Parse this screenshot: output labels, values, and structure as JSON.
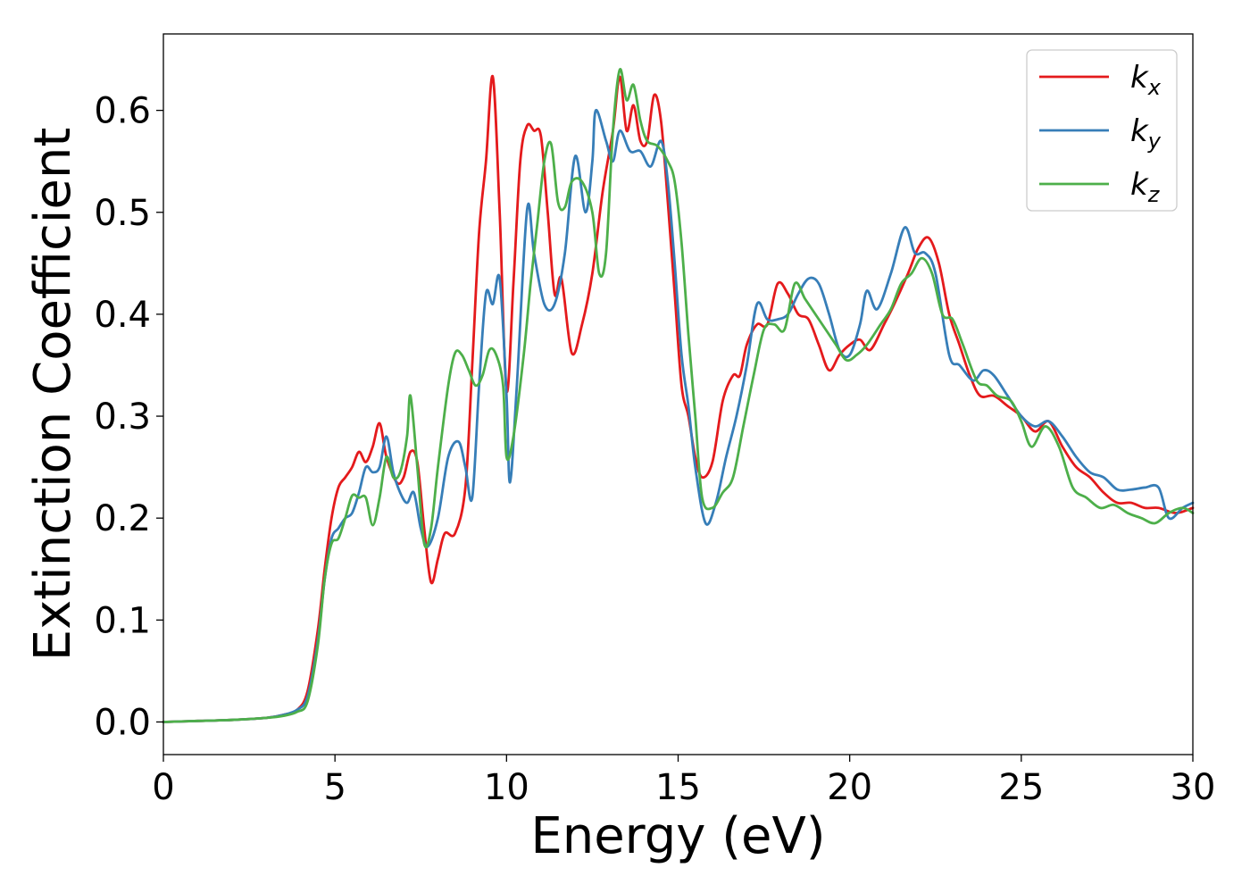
{
  "chart_data": {
    "type": "line",
    "title": "",
    "xlabel": "Energy (eV)",
    "ylabel": "Extinction Coefficient",
    "xlim": [
      0,
      30
    ],
    "ylim": [
      -0.032,
      0.675
    ],
    "xticks": [
      0,
      5,
      10,
      15,
      20,
      25,
      30
    ],
    "yticks": [
      0.0,
      0.1,
      0.2,
      0.3,
      0.4,
      0.5,
      0.6
    ],
    "grid": false,
    "legend_position": "top-right",
    "series": [
      {
        "name": "k",
        "subscript": "x",
        "color": "#e41a1c",
        "points": [
          [
            0,
            0
          ],
          [
            1,
            0.001
          ],
          [
            2,
            0.002
          ],
          [
            3,
            0.004
          ],
          [
            3.5,
            0.007
          ],
          [
            3.9,
            0.012
          ],
          [
            4.2,
            0.03
          ],
          [
            4.5,
            0.09
          ],
          [
            4.7,
            0.15
          ],
          [
            4.9,
            0.2
          ],
          [
            5.1,
            0.23
          ],
          [
            5.3,
            0.24
          ],
          [
            5.5,
            0.25
          ],
          [
            5.7,
            0.265
          ],
          [
            5.9,
            0.255
          ],
          [
            6.1,
            0.27
          ],
          [
            6.3,
            0.293
          ],
          [
            6.5,
            0.26
          ],
          [
            6.8,
            0.235
          ],
          [
            7.0,
            0.24
          ],
          [
            7.2,
            0.265
          ],
          [
            7.4,
            0.255
          ],
          [
            7.6,
            0.19
          ],
          [
            7.8,
            0.137
          ],
          [
            8.0,
            0.16
          ],
          [
            8.2,
            0.185
          ],
          [
            8.5,
            0.185
          ],
          [
            8.8,
            0.23
          ],
          [
            9.0,
            0.35
          ],
          [
            9.2,
            0.48
          ],
          [
            9.4,
            0.55
          ],
          [
            9.6,
            0.633
          ],
          [
            9.8,
            0.5
          ],
          [
            10.0,
            0.325
          ],
          [
            10.2,
            0.43
          ],
          [
            10.4,
            0.55
          ],
          [
            10.6,
            0.585
          ],
          [
            10.8,
            0.58
          ],
          [
            11.0,
            0.575
          ],
          [
            11.2,
            0.5
          ],
          [
            11.4,
            0.42
          ],
          [
            11.6,
            0.435
          ],
          [
            11.9,
            0.362
          ],
          [
            12.2,
            0.39
          ],
          [
            12.5,
            0.44
          ],
          [
            12.8,
            0.52
          ],
          [
            13.1,
            0.58
          ],
          [
            13.3,
            0.633
          ],
          [
            13.5,
            0.58
          ],
          [
            13.7,
            0.605
          ],
          [
            13.9,
            0.57
          ],
          [
            14.1,
            0.57
          ],
          [
            14.3,
            0.615
          ],
          [
            14.5,
            0.59
          ],
          [
            14.7,
            0.51
          ],
          [
            14.9,
            0.42
          ],
          [
            15.1,
            0.33
          ],
          [
            15.3,
            0.3
          ],
          [
            15.5,
            0.26
          ],
          [
            15.7,
            0.24
          ],
          [
            16.0,
            0.255
          ],
          [
            16.3,
            0.315
          ],
          [
            16.6,
            0.34
          ],
          [
            16.8,
            0.34
          ],
          [
            17.0,
            0.37
          ],
          [
            17.3,
            0.39
          ],
          [
            17.6,
            0.39
          ],
          [
            17.9,
            0.43
          ],
          [
            18.2,
            0.42
          ],
          [
            18.5,
            0.4
          ],
          [
            18.8,
            0.395
          ],
          [
            19.1,
            0.37
          ],
          [
            19.4,
            0.345
          ],
          [
            19.7,
            0.36
          ],
          [
            20.0,
            0.37
          ],
          [
            20.3,
            0.375
          ],
          [
            20.6,
            0.365
          ],
          [
            21.0,
            0.39
          ],
          [
            21.3,
            0.41
          ],
          [
            21.7,
            0.44
          ],
          [
            22.0,
            0.465
          ],
          [
            22.3,
            0.475
          ],
          [
            22.6,
            0.45
          ],
          [
            22.9,
            0.4
          ],
          [
            23.2,
            0.37
          ],
          [
            23.5,
            0.34
          ],
          [
            23.8,
            0.32
          ],
          [
            24.2,
            0.32
          ],
          [
            24.6,
            0.31
          ],
          [
            25.0,
            0.3
          ],
          [
            25.4,
            0.285
          ],
          [
            25.8,
            0.295
          ],
          [
            26.2,
            0.27
          ],
          [
            26.6,
            0.25
          ],
          [
            27.0,
            0.24
          ],
          [
            27.4,
            0.225
          ],
          [
            27.8,
            0.215
          ],
          [
            28.2,
            0.215
          ],
          [
            28.6,
            0.21
          ],
          [
            29.0,
            0.21
          ],
          [
            29.5,
            0.205
          ],
          [
            30.0,
            0.21
          ]
        ]
      },
      {
        "name": "k",
        "subscript": "y",
        "color": "#377eb8",
        "points": [
          [
            0,
            0
          ],
          [
            1,
            0.001
          ],
          [
            2,
            0.002
          ],
          [
            3,
            0.004
          ],
          [
            3.5,
            0.007
          ],
          [
            3.9,
            0.012
          ],
          [
            4.2,
            0.025
          ],
          [
            4.5,
            0.08
          ],
          [
            4.7,
            0.14
          ],
          [
            4.9,
            0.18
          ],
          [
            5.1,
            0.19
          ],
          [
            5.3,
            0.2
          ],
          [
            5.5,
            0.205
          ],
          [
            5.7,
            0.225
          ],
          [
            5.9,
            0.25
          ],
          [
            6.1,
            0.245
          ],
          [
            6.3,
            0.25
          ],
          [
            6.5,
            0.28
          ],
          [
            6.7,
            0.245
          ],
          [
            6.9,
            0.225
          ],
          [
            7.1,
            0.215
          ],
          [
            7.3,
            0.225
          ],
          [
            7.5,
            0.19
          ],
          [
            7.7,
            0.172
          ],
          [
            8.0,
            0.2
          ],
          [
            8.3,
            0.26
          ],
          [
            8.6,
            0.275
          ],
          [
            8.8,
            0.25
          ],
          [
            9.0,
            0.22
          ],
          [
            9.2,
            0.33
          ],
          [
            9.4,
            0.42
          ],
          [
            9.6,
            0.41
          ],
          [
            9.8,
            0.435
          ],
          [
            10.0,
            0.32
          ],
          [
            10.1,
            0.235
          ],
          [
            10.3,
            0.33
          ],
          [
            10.6,
            0.503
          ],
          [
            10.8,
            0.46
          ],
          [
            11.1,
            0.41
          ],
          [
            11.4,
            0.41
          ],
          [
            11.7,
            0.46
          ],
          [
            12.0,
            0.555
          ],
          [
            12.3,
            0.5
          ],
          [
            12.5,
            0.55
          ],
          [
            12.6,
            0.6
          ],
          [
            12.9,
            0.57
          ],
          [
            13.1,
            0.55
          ],
          [
            13.3,
            0.58
          ],
          [
            13.6,
            0.56
          ],
          [
            13.9,
            0.56
          ],
          [
            14.2,
            0.545
          ],
          [
            14.5,
            0.57
          ],
          [
            14.7,
            0.53
          ],
          [
            14.9,
            0.45
          ],
          [
            15.1,
            0.36
          ],
          [
            15.3,
            0.31
          ],
          [
            15.5,
            0.25
          ],
          [
            15.8,
            0.195
          ],
          [
            16.1,
            0.215
          ],
          [
            16.4,
            0.26
          ],
          [
            16.7,
            0.3
          ],
          [
            17.0,
            0.35
          ],
          [
            17.3,
            0.41
          ],
          [
            17.6,
            0.395
          ],
          [
            17.9,
            0.395
          ],
          [
            18.2,
            0.4
          ],
          [
            18.5,
            0.42
          ],
          [
            18.8,
            0.435
          ],
          [
            19.1,
            0.43
          ],
          [
            19.4,
            0.4
          ],
          [
            19.7,
            0.365
          ],
          [
            20.0,
            0.36
          ],
          [
            20.3,
            0.39
          ],
          [
            20.5,
            0.423
          ],
          [
            20.8,
            0.405
          ],
          [
            21.2,
            0.44
          ],
          [
            21.6,
            0.485
          ],
          [
            21.9,
            0.46
          ],
          [
            22.2,
            0.46
          ],
          [
            22.5,
            0.44
          ],
          [
            22.9,
            0.36
          ],
          [
            23.2,
            0.35
          ],
          [
            23.6,
            0.335
          ],
          [
            23.9,
            0.345
          ],
          [
            24.2,
            0.34
          ],
          [
            24.6,
            0.32
          ],
          [
            25.0,
            0.3
          ],
          [
            25.4,
            0.29
          ],
          [
            25.8,
            0.295
          ],
          [
            26.2,
            0.28
          ],
          [
            26.6,
            0.26
          ],
          [
            27.0,
            0.245
          ],
          [
            27.4,
            0.24
          ],
          [
            27.8,
            0.228
          ],
          [
            28.2,
            0.228
          ],
          [
            28.6,
            0.23
          ],
          [
            29.0,
            0.23
          ],
          [
            29.3,
            0.2
          ],
          [
            29.7,
            0.21
          ],
          [
            30.0,
            0.215
          ]
        ]
      },
      {
        "name": "k",
        "subscript": "z",
        "color": "#4daf4a",
        "points": [
          [
            0,
            0
          ],
          [
            1,
            0.001
          ],
          [
            2,
            0.002
          ],
          [
            3,
            0.004
          ],
          [
            3.5,
            0.006
          ],
          [
            3.9,
            0.01
          ],
          [
            4.2,
            0.02
          ],
          [
            4.5,
            0.075
          ],
          [
            4.7,
            0.14
          ],
          [
            4.9,
            0.175
          ],
          [
            5.1,
            0.18
          ],
          [
            5.3,
            0.2
          ],
          [
            5.5,
            0.222
          ],
          [
            5.7,
            0.22
          ],
          [
            5.9,
            0.22
          ],
          [
            6.1,
            0.193
          ],
          [
            6.3,
            0.22
          ],
          [
            6.5,
            0.26
          ],
          [
            6.7,
            0.24
          ],
          [
            6.9,
            0.245
          ],
          [
            7.1,
            0.28
          ],
          [
            7.2,
            0.32
          ],
          [
            7.4,
            0.25
          ],
          [
            7.6,
            0.175
          ],
          [
            7.8,
            0.19
          ],
          [
            8.0,
            0.25
          ],
          [
            8.3,
            0.33
          ],
          [
            8.5,
            0.362
          ],
          [
            8.7,
            0.36
          ],
          [
            8.9,
            0.345
          ],
          [
            9.1,
            0.33
          ],
          [
            9.3,
            0.34
          ],
          [
            9.5,
            0.365
          ],
          [
            9.7,
            0.36
          ],
          [
            9.9,
            0.33
          ],
          [
            10.0,
            0.26
          ],
          [
            10.2,
            0.28
          ],
          [
            10.5,
            0.36
          ],
          [
            10.7,
            0.43
          ],
          [
            10.9,
            0.49
          ],
          [
            11.1,
            0.55
          ],
          [
            11.3,
            0.567
          ],
          [
            11.5,
            0.51
          ],
          [
            11.7,
            0.505
          ],
          [
            11.9,
            0.53
          ],
          [
            12.2,
            0.53
          ],
          [
            12.5,
            0.5
          ],
          [
            12.7,
            0.44
          ],
          [
            12.9,
            0.46
          ],
          [
            13.1,
            0.58
          ],
          [
            13.3,
            0.64
          ],
          [
            13.5,
            0.61
          ],
          [
            13.7,
            0.625
          ],
          [
            13.9,
            0.59
          ],
          [
            14.1,
            0.57
          ],
          [
            14.4,
            0.565
          ],
          [
            14.7,
            0.55
          ],
          [
            14.9,
            0.53
          ],
          [
            15.1,
            0.47
          ],
          [
            15.3,
            0.38
          ],
          [
            15.5,
            0.3
          ],
          [
            15.7,
            0.22
          ],
          [
            16.0,
            0.21
          ],
          [
            16.3,
            0.225
          ],
          [
            16.6,
            0.24
          ],
          [
            16.9,
            0.29
          ],
          [
            17.2,
            0.34
          ],
          [
            17.5,
            0.385
          ],
          [
            17.8,
            0.39
          ],
          [
            18.1,
            0.385
          ],
          [
            18.4,
            0.43
          ],
          [
            18.7,
            0.415
          ],
          [
            19.0,
            0.4
          ],
          [
            19.3,
            0.385
          ],
          [
            19.6,
            0.37
          ],
          [
            19.9,
            0.355
          ],
          [
            20.2,
            0.36
          ],
          [
            20.5,
            0.37
          ],
          [
            20.9,
            0.39
          ],
          [
            21.2,
            0.405
          ],
          [
            21.5,
            0.43
          ],
          [
            21.8,
            0.44
          ],
          [
            22.1,
            0.455
          ],
          [
            22.4,
            0.44
          ],
          [
            22.7,
            0.4
          ],
          [
            23.0,
            0.395
          ],
          [
            23.3,
            0.37
          ],
          [
            23.7,
            0.335
          ],
          [
            24.0,
            0.33
          ],
          [
            24.3,
            0.32
          ],
          [
            24.7,
            0.315
          ],
          [
            25.0,
            0.295
          ],
          [
            25.3,
            0.27
          ],
          [
            25.7,
            0.29
          ],
          [
            26.1,
            0.27
          ],
          [
            26.5,
            0.23
          ],
          [
            26.9,
            0.22
          ],
          [
            27.3,
            0.21
          ],
          [
            27.7,
            0.213
          ],
          [
            28.1,
            0.205
          ],
          [
            28.5,
            0.2
          ],
          [
            28.9,
            0.195
          ],
          [
            29.3,
            0.205
          ],
          [
            29.7,
            0.21
          ],
          [
            30.0,
            0.205
          ]
        ]
      }
    ]
  }
}
